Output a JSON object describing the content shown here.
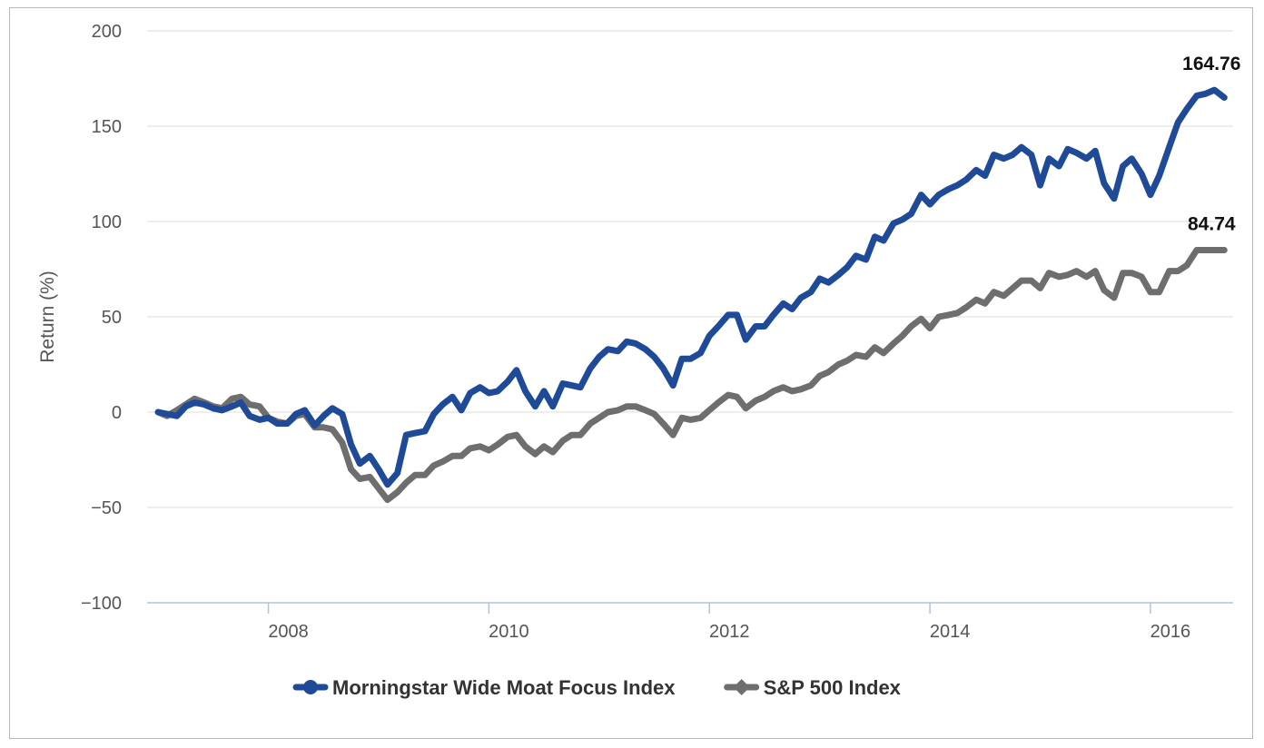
{
  "chart_data": {
    "type": "line",
    "title": "",
    "xlabel": "",
    "ylabel": "Return (%)",
    "ylim": [
      -100,
      200
    ],
    "yticks": [
      200,
      150,
      100,
      50,
      0,
      -50,
      -100
    ],
    "ytick_labels": [
      "200",
      "150",
      "100",
      "50",
      "0",
      "−50",
      "−100"
    ],
    "xlim": [
      2006.9,
      2016.75
    ],
    "xticks": [
      2008,
      2010,
      2012,
      2014,
      2016
    ],
    "xtick_labels": [
      "2008",
      "2010",
      "2012",
      "2014",
      "2016"
    ],
    "grid": "horizontal",
    "legend_position": "bottom-center",
    "series": [
      {
        "name": "Morningstar Wide Moat Focus Index",
        "color": "#1f4a97",
        "end_label": "164.76",
        "x": [
          2007.0,
          2007.08,
          2007.17,
          2007.25,
          2007.33,
          2007.42,
          2007.5,
          2007.58,
          2007.67,
          2007.75,
          2007.83,
          2007.92,
          2008.0,
          2008.08,
          2008.17,
          2008.25,
          2008.33,
          2008.42,
          2008.5,
          2008.58,
          2008.67,
          2008.75,
          2008.83,
          2008.92,
          2009.0,
          2009.08,
          2009.17,
          2009.25,
          2009.33,
          2009.42,
          2009.5,
          2009.58,
          2009.67,
          2009.75,
          2009.83,
          2009.92,
          2010.0,
          2010.08,
          2010.17,
          2010.25,
          2010.33,
          2010.42,
          2010.5,
          2010.58,
          2010.67,
          2010.75,
          2010.83,
          2010.92,
          2011.0,
          2011.08,
          2011.17,
          2011.25,
          2011.33,
          2011.42,
          2011.5,
          2011.58,
          2011.67,
          2011.75,
          2011.83,
          2011.92,
          2012.0,
          2012.08,
          2012.17,
          2012.25,
          2012.33,
          2012.42,
          2012.5,
          2012.58,
          2012.67,
          2012.75,
          2012.83,
          2012.92,
          2013.0,
          2013.08,
          2013.17,
          2013.25,
          2013.33,
          2013.42,
          2013.5,
          2013.58,
          2013.67,
          2013.75,
          2013.83,
          2013.92,
          2014.0,
          2014.08,
          2014.17,
          2014.25,
          2014.33,
          2014.42,
          2014.5,
          2014.58,
          2014.67,
          2014.75,
          2014.83,
          2014.92,
          2015.0,
          2015.08,
          2015.17,
          2015.25,
          2015.33,
          2015.42,
          2015.5,
          2015.58,
          2015.67,
          2015.75,
          2015.83,
          2015.92,
          2016.0,
          2016.08,
          2016.17,
          2016.25,
          2016.33,
          2016.42,
          2016.5,
          2016.58,
          2016.67
        ],
        "y": [
          0,
          -1,
          -2,
          3,
          5,
          4,
          2,
          1,
          3,
          5,
          -2,
          -4,
          -3,
          -6,
          -6,
          -1,
          1,
          -7,
          -2,
          2,
          -1,
          -17,
          -27,
          -23,
          -30,
          -38,
          -32,
          -12,
          -11,
          -10,
          -1,
          4,
          8,
          1,
          10,
          13,
          10,
          11,
          16,
          22,
          11,
          3,
          11,
          3,
          15,
          14,
          13,
          23,
          29,
          33,
          32,
          37,
          36,
          33,
          29,
          23,
          14,
          28,
          28,
          31,
          40,
          45,
          51,
          51,
          38,
          45,
          45,
          51,
          57,
          54,
          60,
          63,
          70,
          68,
          72,
          76,
          82,
          80,
          92,
          90,
          99,
          101,
          104,
          114,
          109,
          114,
          117,
          119,
          122,
          127,
          124,
          135,
          133,
          135,
          139,
          135,
          119,
          133,
          129,
          138,
          136,
          133,
          137,
          120,
          112,
          129,
          133,
          125,
          114,
          124,
          139,
          152,
          159,
          166,
          167,
          169,
          165
        ]
      },
      {
        "name": "S&P 500 Index",
        "color": "#6e6e6e",
        "end_label": "84.74",
        "x": [
          2007.0,
          2007.08,
          2007.17,
          2007.25,
          2007.33,
          2007.42,
          2007.5,
          2007.58,
          2007.67,
          2007.75,
          2007.83,
          2007.92,
          2008.0,
          2008.08,
          2008.17,
          2008.25,
          2008.33,
          2008.42,
          2008.5,
          2008.58,
          2008.67,
          2008.75,
          2008.83,
          2008.92,
          2009.0,
          2009.08,
          2009.17,
          2009.25,
          2009.33,
          2009.42,
          2009.5,
          2009.58,
          2009.67,
          2009.75,
          2009.83,
          2009.92,
          2010.0,
          2010.08,
          2010.17,
          2010.25,
          2010.33,
          2010.42,
          2010.5,
          2010.58,
          2010.67,
          2010.75,
          2010.83,
          2010.92,
          2011.0,
          2011.08,
          2011.17,
          2011.25,
          2011.33,
          2011.42,
          2011.5,
          2011.58,
          2011.67,
          2011.75,
          2011.83,
          2011.92,
          2012.0,
          2012.08,
          2012.17,
          2012.25,
          2012.33,
          2012.42,
          2012.5,
          2012.58,
          2012.67,
          2012.75,
          2012.83,
          2012.92,
          2013.0,
          2013.08,
          2013.17,
          2013.25,
          2013.33,
          2013.42,
          2013.5,
          2013.58,
          2013.67,
          2013.75,
          2013.83,
          2013.92,
          2014.0,
          2014.08,
          2014.17,
          2014.25,
          2014.33,
          2014.42,
          2014.5,
          2014.58,
          2014.67,
          2014.75,
          2014.83,
          2014.92,
          2015.0,
          2015.08,
          2015.17,
          2015.25,
          2015.33,
          2015.42,
          2015.5,
          2015.58,
          2015.67,
          2015.75,
          2015.83,
          2015.92,
          2016.0,
          2016.08,
          2016.17,
          2016.25,
          2016.33,
          2016.42,
          2016.5,
          2016.58,
          2016.67
        ],
        "y": [
          0,
          -2,
          1,
          4,
          7,
          5,
          3,
          2,
          7,
          8,
          4,
          3,
          -3,
          -5,
          -6,
          -2,
          -1,
          -8,
          -8,
          -9,
          -16,
          -30,
          -35,
          -34,
          -40,
          -46,
          -42,
          -37,
          -33,
          -33,
          -28,
          -26,
          -23,
          -23,
          -19,
          -18,
          -20,
          -17,
          -13,
          -12,
          -18,
          -22,
          -18,
          -21,
          -15,
          -12,
          -12,
          -6,
          -3,
          0,
          1,
          3,
          3,
          1,
          -1,
          -6,
          -12,
          -3,
          -4,
          -3,
          1,
          5,
          9,
          8,
          2,
          6,
          8,
          11,
          13,
          11,
          12,
          14,
          19,
          21,
          25,
          27,
          30,
          29,
          34,
          31,
          36,
          40,
          45,
          49,
          44,
          50,
          51,
          52,
          55,
          59,
          57,
          63,
          61,
          65,
          69,
          69,
          65,
          73,
          71,
          72,
          74,
          71,
          74,
          64,
          60,
          73,
          73,
          71,
          63,
          63,
          74,
          74,
          77,
          85,
          85,
          85,
          85
        ]
      }
    ]
  }
}
